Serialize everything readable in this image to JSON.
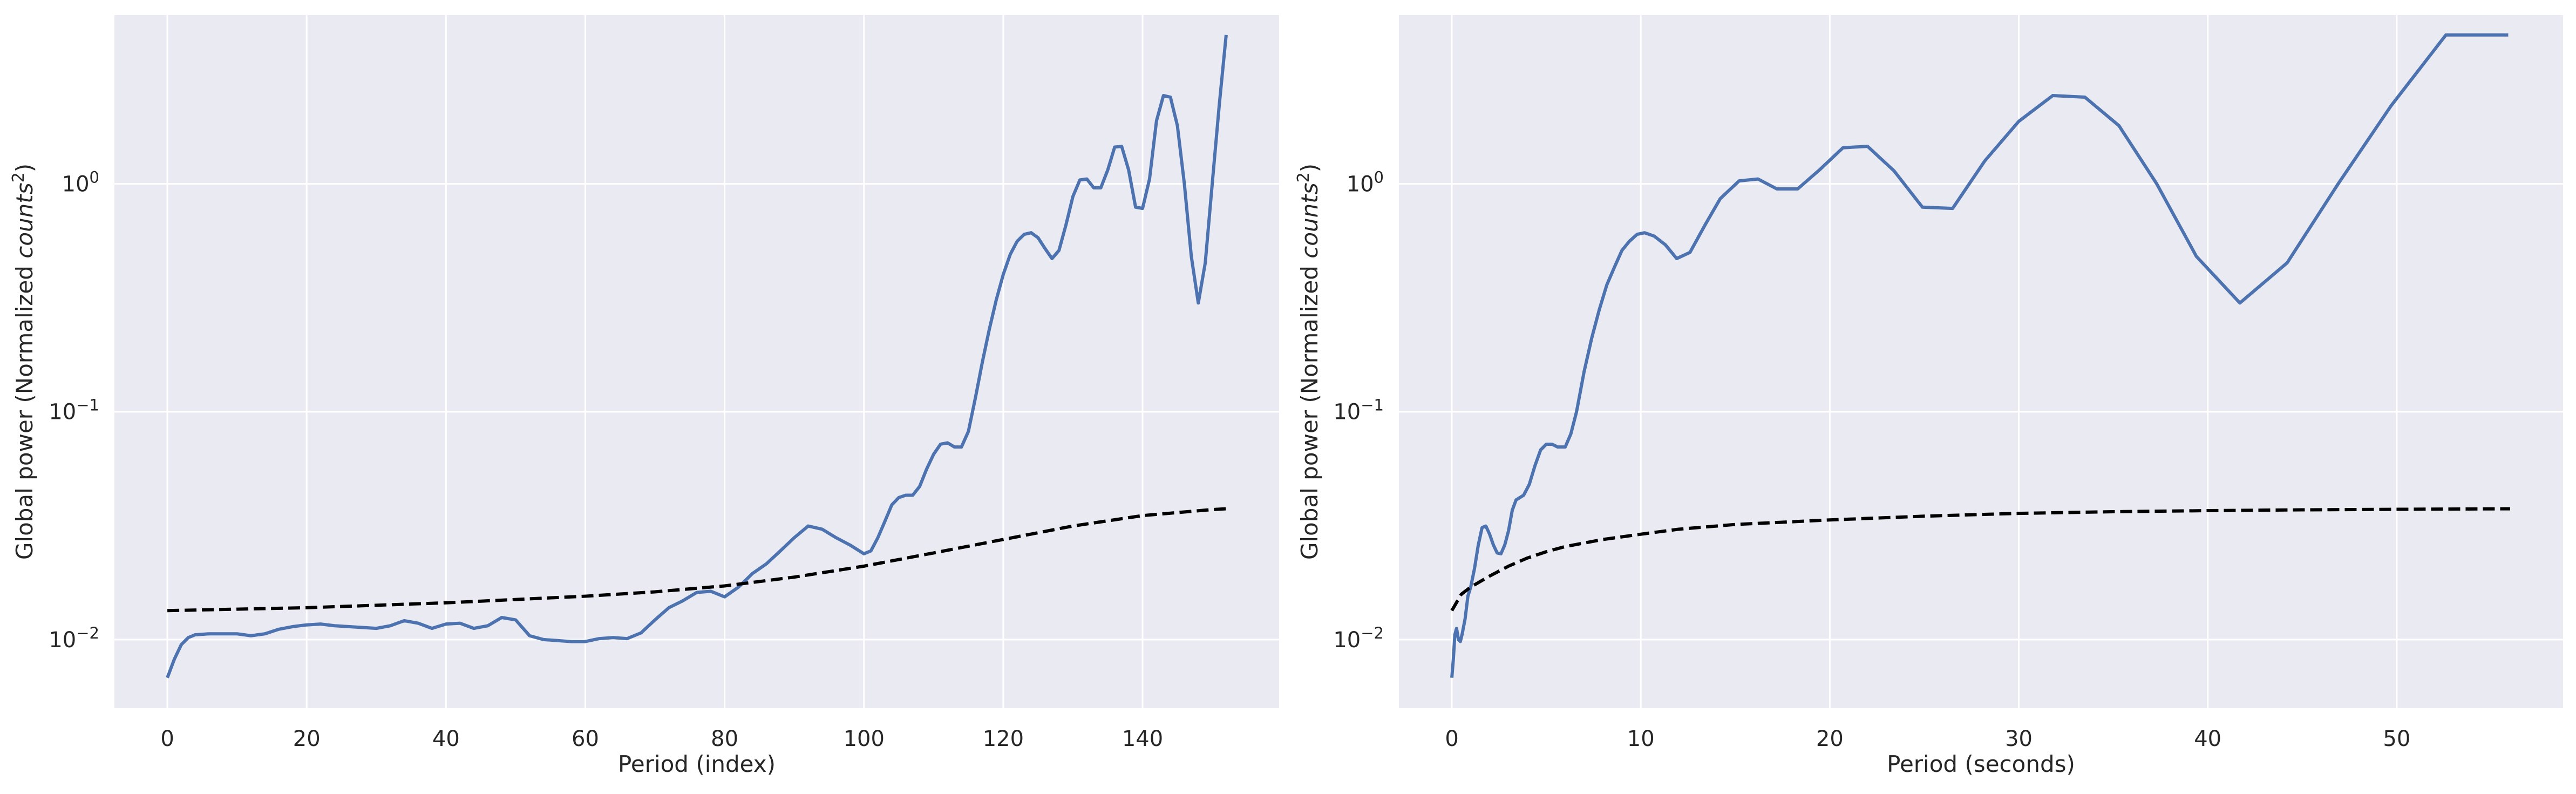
{
  "figure": {
    "background": "#ffffff",
    "axes_facecolor": "#eaeaf2",
    "grid_color": "#ffffff",
    "line_color": "#4c72b0",
    "significance_color": "#000000"
  },
  "chart_data": [
    {
      "type": "line",
      "title": "",
      "xlabel": "Period (index)",
      "ylabel_prefix": "Global power (Normalized ",
      "ylabel_math": "counts",
      "ylabel_exp": "2",
      "ylabel_suffix": ")",
      "xlim": [
        -7.6,
        159.6
      ],
      "ylim": [
        0.005,
        5.5
      ],
      "yscale": "log",
      "grid": true,
      "legend": "none",
      "xticks": [
        0,
        20,
        40,
        60,
        80,
        100,
        120,
        140
      ],
      "xtick_labels": [
        "0",
        "20",
        "40",
        "60",
        "80",
        "100",
        "120",
        "140"
      ],
      "yticks": [
        {
          "value": 0.01,
          "base": "10",
          "exp": "−2"
        },
        {
          "value": 0.1,
          "base": "10",
          "exp": "−1"
        },
        {
          "value": 1,
          "base": "10",
          "exp": "0"
        }
      ],
      "series": [
        {
          "style": "solid",
          "color": "#4c72b0",
          "x": [
            0,
            1,
            2,
            3,
            4,
            6,
            8,
            10,
            12,
            14,
            16,
            18,
            20,
            22,
            24,
            26,
            28,
            30,
            32,
            34,
            36,
            38,
            40,
            42,
            44,
            46,
            48,
            50,
            52,
            54,
            56,
            58,
            60,
            62,
            64,
            66,
            68,
            70,
            72,
            74,
            76,
            78,
            80,
            82,
            84,
            86,
            88,
            90,
            92,
            94,
            96,
            98,
            100,
            101,
            102,
            103,
            104,
            105,
            106,
            107,
            108,
            109,
            110,
            111,
            112,
            113,
            114,
            115,
            116,
            117,
            118,
            119,
            120,
            121,
            122,
            123,
            124,
            125,
            126,
            127,
            128,
            129,
            130,
            131,
            132,
            133,
            134,
            135,
            136,
            137,
            138,
            139,
            140,
            141,
            142,
            143,
            144,
            145,
            146,
            147,
            148,
            149,
            150,
            151,
            152
          ],
          "y": [
            0.0068,
            0.0082,
            0.0095,
            0.0102,
            0.0105,
            0.0106,
            0.0106,
            0.0106,
            0.0104,
            0.0106,
            0.0111,
            0.0114,
            0.0116,
            0.0117,
            0.0115,
            0.0114,
            0.0113,
            0.0112,
            0.0115,
            0.0121,
            0.0118,
            0.0112,
            0.0117,
            0.0118,
            0.0112,
            0.0115,
            0.0125,
            0.0122,
            0.0104,
            0.01,
            0.0099,
            0.0098,
            0.0098,
            0.0101,
            0.0102,
            0.0101,
            0.0107,
            0.0122,
            0.0138,
            0.0148,
            0.0161,
            0.0163,
            0.0154,
            0.017,
            0.0195,
            0.0215,
            0.0245,
            0.028,
            0.0315,
            0.0305,
            0.028,
            0.026,
            0.0238,
            0.0245,
            0.028,
            0.033,
            0.039,
            0.042,
            0.043,
            0.043,
            0.047,
            0.056,
            0.065,
            0.072,
            0.073,
            0.07,
            0.07,
            0.082,
            0.115,
            0.165,
            0.23,
            0.31,
            0.4,
            0.49,
            0.56,
            0.6,
            0.61,
            0.58,
            0.52,
            0.47,
            0.51,
            0.66,
            0.88,
            1.04,
            1.05,
            0.96,
            0.96,
            1.15,
            1.45,
            1.46,
            1.15,
            0.79,
            0.78,
            1.05,
            1.89,
            2.44,
            2.4,
            1.8,
            1.0,
            0.48,
            0.3,
            0.45,
            1.0,
            2.2,
            4.5
          ]
        },
        {
          "style": "dashed",
          "color": "#000000",
          "x": [
            0,
            20,
            40,
            60,
            70,
            80,
            90,
            100,
            110,
            120,
            130,
            140,
            150,
            152
          ],
          "y": [
            0.0134,
            0.0138,
            0.0145,
            0.0155,
            0.0162,
            0.0172,
            0.0188,
            0.021,
            0.024,
            0.0275,
            0.0315,
            0.035,
            0.0372,
            0.0375
          ]
        }
      ]
    },
    {
      "type": "line",
      "title": "",
      "xlabel": "Period (seconds)",
      "ylabel_prefix": "Global power (Normalized ",
      "ylabel_math": "counts",
      "ylabel_exp": "2",
      "ylabel_suffix": ")",
      "xlim": [
        -2.8,
        58.8
      ],
      "ylim": [
        0.005,
        5.5
      ],
      "yscale": "log",
      "grid": true,
      "legend": "none",
      "xticks": [
        0,
        10,
        20,
        30,
        40,
        50
      ],
      "xtick_labels": [
        "0",
        "10",
        "20",
        "30",
        "40",
        "50"
      ],
      "yticks": [
        {
          "value": 0.01,
          "base": "10",
          "exp": "−2"
        },
        {
          "value": 0.1,
          "base": "10",
          "exp": "−1"
        },
        {
          "value": 1,
          "base": "10",
          "exp": "0"
        }
      ],
      "series": [
        {
          "style": "solid",
          "color": "#4c72b0",
          "x": [
            0.0,
            0.08,
            0.16,
            0.25,
            0.35,
            0.45,
            0.55,
            0.7,
            0.85,
            1.0,
            1.2,
            1.4,
            1.6,
            1.8,
            2.0,
            2.2,
            2.4,
            2.6,
            2.8,
            3.0,
            3.2,
            3.4,
            3.6,
            3.8,
            4.1,
            4.4,
            4.7,
            5.0,
            5.3,
            5.6,
            6.0,
            6.3,
            6.6,
            7.0,
            7.4,
            7.8,
            8.2,
            8.6,
            9.0,
            9.4,
            9.8,
            10.2,
            10.7,
            11.3,
            11.9,
            12.6,
            13.4,
            14.2,
            15.2,
            16.2,
            17.2,
            18.3,
            19.5,
            20.7,
            22.0,
            23.4,
            24.9,
            26.5,
            28.2,
            30.0,
            31.8,
            33.5,
            35.3,
            37.3,
            39.4,
            41.7,
            44.2,
            46.9,
            49.7,
            52.6,
            55.9
          ],
          "y": [
            0.0068,
            0.0082,
            0.0105,
            0.0112,
            0.01,
            0.0098,
            0.0106,
            0.0123,
            0.0155,
            0.017,
            0.0205,
            0.026,
            0.031,
            0.0315,
            0.029,
            0.026,
            0.024,
            0.0238,
            0.026,
            0.03,
            0.037,
            0.041,
            0.042,
            0.043,
            0.048,
            0.058,
            0.068,
            0.072,
            0.072,
            0.07,
            0.07,
            0.08,
            0.1,
            0.15,
            0.21,
            0.28,
            0.36,
            0.43,
            0.51,
            0.56,
            0.6,
            0.61,
            0.59,
            0.54,
            0.47,
            0.5,
            0.66,
            0.86,
            1.03,
            1.05,
            0.95,
            0.95,
            1.16,
            1.44,
            1.46,
            1.14,
            0.79,
            0.78,
            1.26,
            1.88,
            2.44,
            2.4,
            1.8,
            1.0,
            0.48,
            0.3,
            0.45,
            1.0,
            2.2,
            4.5,
            4.5
          ]
        },
        {
          "style": "dashed",
          "color": "#000000",
          "x": [
            0,
            0.5,
            1,
            2,
            3,
            4,
            5,
            6,
            8,
            10,
            12,
            15,
            20,
            25,
            30,
            35,
            40,
            45,
            50,
            56
          ],
          "y": [
            0.0134,
            0.0158,
            0.017,
            0.019,
            0.021,
            0.0228,
            0.0243,
            0.0256,
            0.0275,
            0.029,
            0.0305,
            0.032,
            0.0335,
            0.0348,
            0.0358,
            0.0364,
            0.0368,
            0.0371,
            0.0373,
            0.0375
          ]
        }
      ]
    }
  ]
}
